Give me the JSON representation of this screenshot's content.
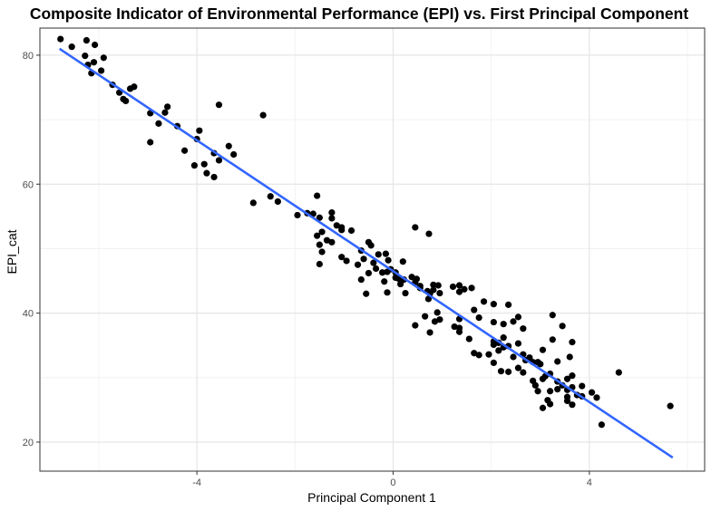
{
  "chart_data": {
    "type": "scatter",
    "title": "Composite Indicator of Environmental Performance (EPI) vs. First Principal Component",
    "xlabel": "Principal Component 1",
    "ylabel": "EPI_cat",
    "xlim": [
      -7.2,
      6.35
    ],
    "ylim": [
      15.5,
      84.2
    ],
    "x_ticks": [
      -4,
      0,
      4
    ],
    "x_tick_labels": [
      "-4",
      "0",
      "4"
    ],
    "y_ticks": [
      20,
      40,
      60,
      80
    ],
    "y_tick_labels": [
      "20",
      "40",
      "60",
      "80"
    ],
    "grid": true,
    "legend": "none",
    "point_color": "#000000",
    "fit_line": {
      "color": "#3366ff",
      "x": [
        -6.8,
        5.7
      ],
      "y": [
        81.0,
        17.6
      ]
    },
    "points": [
      [
        -6.78,
        82.5
      ],
      [
        -6.55,
        81.3
      ],
      [
        -6.25,
        82.3
      ],
      [
        -6.08,
        81.6
      ],
      [
        -5.9,
        79.6
      ],
      [
        -6.28,
        79.9
      ],
      [
        -6.1,
        78.9
      ],
      [
        -6.22,
        78.5
      ],
      [
        -5.95,
        77.6
      ],
      [
        -6.15,
        77.2
      ],
      [
        -5.72,
        75.4
      ],
      [
        -5.28,
        75.1
      ],
      [
        -5.36,
        74.8
      ],
      [
        -5.58,
        74.2
      ],
      [
        -5.5,
        73.2
      ],
      [
        -5.45,
        72.9
      ],
      [
        -4.6,
        72.0
      ],
      [
        -3.55,
        72.3
      ],
      [
        -4.65,
        71.1
      ],
      [
        -4.95,
        71.0
      ],
      [
        -4.78,
        69.4
      ],
      [
        -4.4,
        69.0
      ],
      [
        -2.65,
        70.7
      ],
      [
        -3.95,
        68.3
      ],
      [
        -4.0,
        67.0
      ],
      [
        -4.95,
        66.5
      ],
      [
        -3.35,
        65.9
      ],
      [
        -4.25,
        65.2
      ],
      [
        -3.65,
        64.8
      ],
      [
        -3.25,
        64.6
      ],
      [
        -3.55,
        63.7
      ],
      [
        -4.05,
        62.9
      ],
      [
        -3.85,
        63.1
      ],
      [
        -3.8,
        61.7
      ],
      [
        -3.65,
        61.1
      ],
      [
        -2.5,
        58.1
      ],
      [
        -2.35,
        57.3
      ],
      [
        -2.85,
        57.1
      ],
      [
        -1.55,
        58.2
      ],
      [
        -1.95,
        55.2
      ],
      [
        -1.75,
        55.5
      ],
      [
        -1.63,
        55.4
      ],
      [
        -1.25,
        55.6
      ],
      [
        -1.5,
        54.8
      ],
      [
        -1.25,
        54.7
      ],
      [
        -1.15,
        53.6
      ],
      [
        -1.05,
        52.9
      ],
      [
        -0.85,
        52.8
      ],
      [
        -1.45,
        52.6
      ],
      [
        -1.55,
        52.0
      ],
      [
        -1.05,
        53.3
      ],
      [
        -1.35,
        51.3
      ],
      [
        -1.25,
        51.0
      ],
      [
        -1.5,
        50.6
      ],
      [
        -0.5,
        51.0
      ],
      [
        -0.45,
        50.5
      ],
      [
        -0.65,
        49.7
      ],
      [
        -0.3,
        49.1
      ],
      [
        -0.15,
        49.2
      ],
      [
        -1.45,
        49.5
      ],
      [
        -1.05,
        48.7
      ],
      [
        -0.95,
        48.1
      ],
      [
        -0.6,
        48.4
      ],
      [
        -0.72,
        47.5
      ],
      [
        -0.4,
        47.8
      ],
      [
        -1.5,
        47.6
      ],
      [
        -0.1,
        48.2
      ],
      [
        -0.35,
        46.9
      ],
      [
        -0.05,
        46.8
      ],
      [
        0.2,
        48.0
      ],
      [
        -0.22,
        46.3
      ],
      [
        -0.12,
        46.4
      ],
      [
        0.05,
        46.3
      ],
      [
        -0.5,
        46.2
      ],
      [
        0.05,
        45.5
      ],
      [
        0.12,
        45.3
      ],
      [
        0.22,
        45.2
      ],
      [
        0.38,
        45.6
      ],
      [
        0.48,
        45.3
      ],
      [
        -0.65,
        45.2
      ],
      [
        -0.18,
        44.9
      ],
      [
        0.15,
        44.5
      ],
      [
        0.45,
        44.8
      ],
      [
        0.55,
        44.2
      ],
      [
        0.82,
        44.4
      ],
      [
        0.92,
        44.3
      ],
      [
        1.22,
        44.1
      ],
      [
        1.35,
        44.3
      ],
      [
        1.45,
        43.7
      ],
      [
        1.6,
        43.9
      ],
      [
        0.55,
        43.9
      ],
      [
        0.7,
        43.4
      ],
      [
        0.82,
        43.6
      ],
      [
        0.95,
        43.1
      ],
      [
        0.25,
        43.1
      ],
      [
        -0.12,
        43.2
      ],
      [
        -0.55,
        43.0
      ],
      [
        0.75,
        43.0
      ],
      [
        1.35,
        43.3
      ],
      [
        0.45,
        53.3
      ],
      [
        0.73,
        52.3
      ],
      [
        1.85,
        41.8
      ],
      [
        2.05,
        41.4
      ],
      [
        2.35,
        41.3
      ],
      [
        0.72,
        42.2
      ],
      [
        1.65,
        40.5
      ],
      [
        0.9,
        40.1
      ],
      [
        0.65,
        39.5
      ],
      [
        1.35,
        39.1
      ],
      [
        0.95,
        39.0
      ],
      [
        0.85,
        38.7
      ],
      [
        1.75,
        39.3
      ],
      [
        2.25,
        38.3
      ],
      [
        2.45,
        38.7
      ],
      [
        2.55,
        39.4
      ],
      [
        2.05,
        38.6
      ],
      [
        0.45,
        38.1
      ],
      [
        1.25,
        37.9
      ],
      [
        1.35,
        37.7
      ],
      [
        1.35,
        37.1
      ],
      [
        0.75,
        37.0
      ],
      [
        1.55,
        36.0
      ],
      [
        2.25,
        36.2
      ],
      [
        2.65,
        37.6
      ],
      [
        2.05,
        35.6
      ],
      [
        1.75,
        33.5
      ],
      [
        1.65,
        33.8
      ],
      [
        1.95,
        33.6
      ],
      [
        2.15,
        34.2
      ],
      [
        2.25,
        34.7
      ],
      [
        2.35,
        34.9
      ],
      [
        2.05,
        35.1
      ],
      [
        2.15,
        35.4
      ],
      [
        2.55,
        35.3
      ],
      [
        2.65,
        33.6
      ],
      [
        2.78,
        33.1
      ],
      [
        2.95,
        32.4
      ],
      [
        3.05,
        34.3
      ],
      [
        3.25,
        35.9
      ],
      [
        3.65,
        35.5
      ],
      [
        3.45,
        38.0
      ],
      [
        3.25,
        39.7
      ],
      [
        3.0,
        32.1
      ],
      [
        2.85,
        32.4
      ],
      [
        2.7,
        32.7
      ],
      [
        2.45,
        33.2
      ],
      [
        2.05,
        32.3
      ],
      [
        2.2,
        31.0
      ],
      [
        2.35,
        30.9
      ],
      [
        2.55,
        31.5
      ],
      [
        2.65,
        30.8
      ],
      [
        2.85,
        29.5
      ],
      [
        3.1,
        30.2
      ],
      [
        3.2,
        30.6
      ],
      [
        3.35,
        32.5
      ],
      [
        3.6,
        33.2
      ],
      [
        3.55,
        29.8
      ],
      [
        3.65,
        30.3
      ],
      [
        3.35,
        29.4
      ],
      [
        3.05,
        29.8
      ],
      [
        2.9,
        28.8
      ],
      [
        2.95,
        27.9
      ],
      [
        3.2,
        27.9
      ],
      [
        3.35,
        28.2
      ],
      [
        3.55,
        28.1
      ],
      [
        3.65,
        28.5
      ],
      [
        3.85,
        28.7
      ],
      [
        3.75,
        27.3
      ],
      [
        3.55,
        27.0
      ],
      [
        3.15,
        26.5
      ],
      [
        3.2,
        25.9
      ],
      [
        3.05,
        25.3
      ],
      [
        3.55,
        26.4
      ],
      [
        3.65,
        25.8
      ],
      [
        3.45,
        28.8
      ],
      [
        3.85,
        27.1
      ],
      [
        4.05,
        27.7
      ],
      [
        4.15,
        26.9
      ],
      [
        4.25,
        22.7
      ],
      [
        4.6,
        30.8
      ],
      [
        5.65,
        25.6
      ]
    ]
  }
}
